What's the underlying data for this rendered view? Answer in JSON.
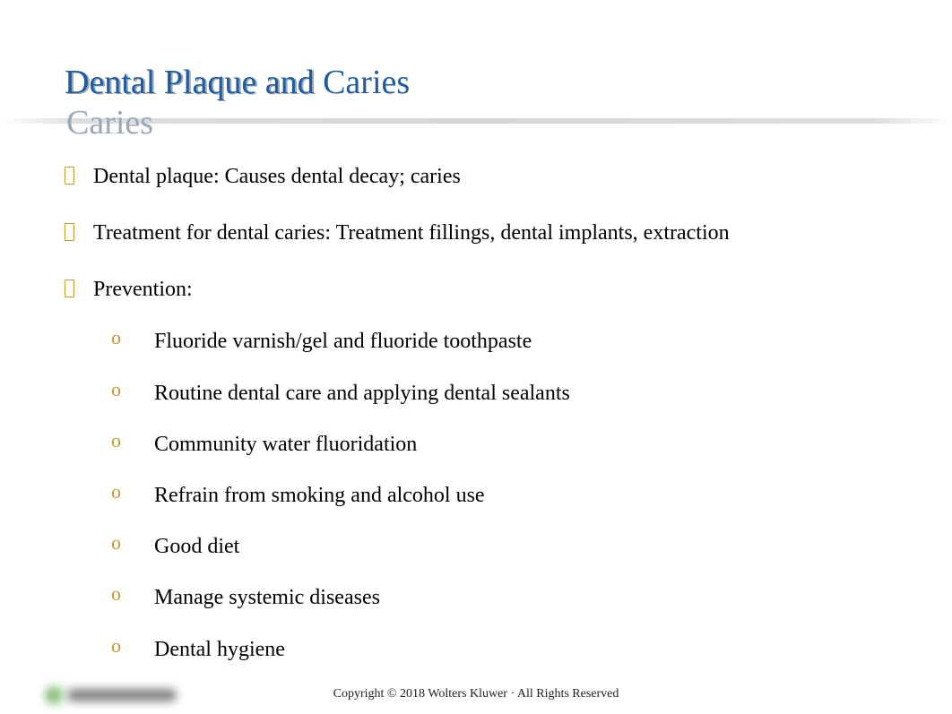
{
  "title": "Dental Plaque and Caries",
  "title_color": "#1f5c9e",
  "title_shadow_color": "#9aa8b8",
  "title_fontsize": 38,
  "divider_color": "#b8b8b8",
  "bullet_color": "#c59a2e",
  "body_fontsize": 24,
  "body_color": "#000000",
  "background_color": "#ffffff",
  "bullets": [
    {
      "text": "Dental plaque: Causes dental decay; caries"
    },
    {
      "text": "Treatment for dental caries: Treatment fillings, dental implants, extraction"
    },
    {
      "text": "Prevention:",
      "children": [
        "Fluoride varnish/gel and fluoride toothpaste",
        "Routine dental care and applying dental sealants",
        "Community water fluoridation",
        "Refrain from smoking and alcohol use",
        "Good diet",
        "Manage systemic diseases",
        "Dental hygiene"
      ]
    }
  ],
  "footer": "Copyright © 2018 Wolters Kluwer · All Rights Reserved",
  "footer_fontsize": 14,
  "footer_color": "#222222",
  "logo_accent_color": "#5fa84f"
}
